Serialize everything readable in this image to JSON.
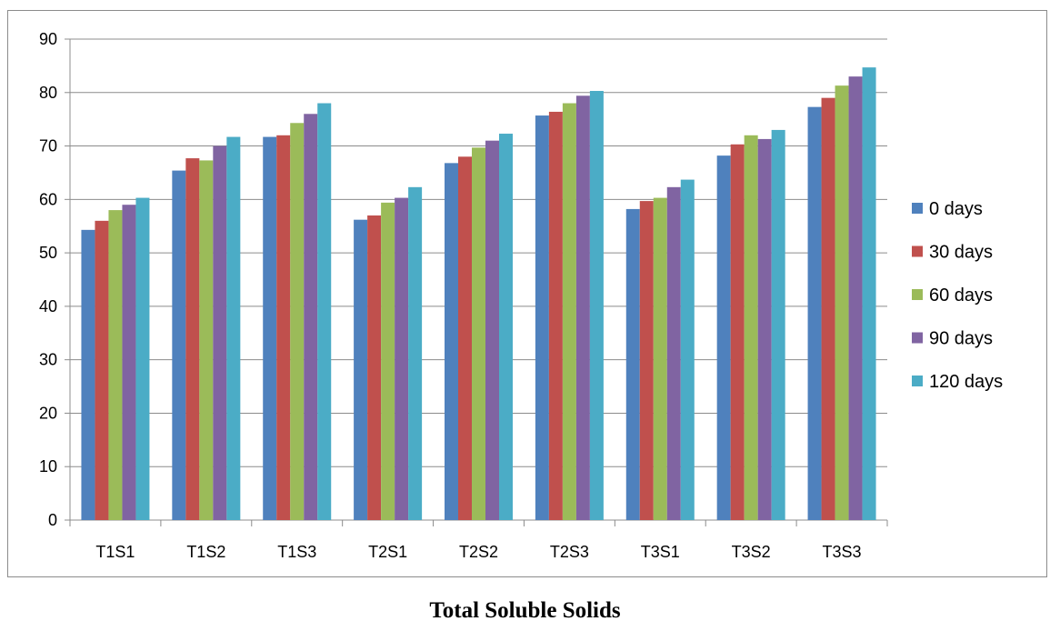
{
  "chart_data": {
    "type": "bar",
    "title": "Total Soluble Solids",
    "xlabel": "",
    "ylabel": "",
    "categories": [
      "T1S1",
      "T1S2",
      "T1S3",
      "T2S1",
      "T2S2",
      "T2S3",
      "T3S1",
      "T3S2",
      "T3S3"
    ],
    "ylim": [
      0,
      90
    ],
    "yticks": [
      0,
      10,
      20,
      30,
      40,
      50,
      60,
      70,
      80,
      90
    ],
    "grid": true,
    "legend_position": "right",
    "series": [
      {
        "name": "0 days",
        "color": "#4f81bd",
        "values": [
          54.3,
          65.4,
          71.7,
          56.2,
          66.8,
          75.7,
          58.2,
          68.2,
          77.3
        ]
      },
      {
        "name": "30 days",
        "color": "#c0504d",
        "values": [
          56.0,
          67.7,
          72.0,
          57.0,
          68.0,
          76.4,
          59.7,
          70.3,
          79.0
        ]
      },
      {
        "name": "60 days",
        "color": "#9bbb59",
        "values": [
          58.0,
          67.3,
          74.3,
          59.4,
          69.7,
          78.0,
          60.3,
          72.0,
          81.3
        ]
      },
      {
        "name": "90 days",
        "color": "#8064a2",
        "values": [
          59.0,
          70.0,
          76.0,
          60.3,
          71.0,
          79.4,
          62.3,
          71.3,
          83.0
        ]
      },
      {
        "name": "120 days",
        "color": "#4bacc6",
        "values": [
          60.3,
          71.7,
          78.0,
          62.3,
          72.3,
          80.3,
          63.7,
          73.0,
          84.7
        ]
      }
    ]
  }
}
